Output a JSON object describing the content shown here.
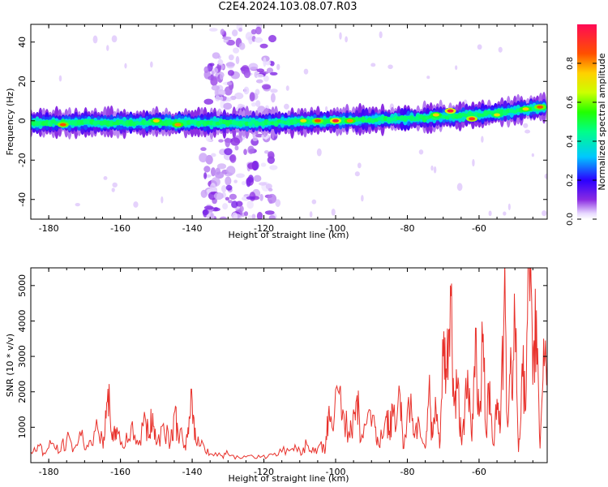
{
  "title": "C2E4.2024.103.08.07.R03",
  "chart_data": [
    {
      "type": "heatmap",
      "title": "C2E4.2024.103.08.07.R03",
      "xlabel": "Height of straight line (km)",
      "ylabel": "Frequency (Hz)",
      "xlim": [
        -185,
        -41
      ],
      "ylim": [
        -50,
        49
      ],
      "xticks": [
        -180,
        -160,
        -140,
        -120,
        -100,
        -80,
        -60
      ],
      "yticks": [
        -40,
        -20,
        0,
        20,
        40
      ],
      "colorbar": {
        "label": "Normalized spectral amplitude",
        "range": [
          0,
          1
        ],
        "ticks": [
          0.0,
          0.2,
          0.4,
          0.6,
          0.8
        ],
        "colormap": "gist_rainbow_r"
      },
      "band_center_hz": [
        {
          "x": -185,
          "y": -1
        },
        {
          "x": -120,
          "y": -1
        },
        {
          "x": -100,
          "y": 0
        },
        {
          "x": -80,
          "y": 1
        },
        {
          "x": -60,
          "y": 3
        },
        {
          "x": -41,
          "y": 7
        }
      ],
      "high_amplitude_points": [
        {
          "x": -176,
          "y": -2,
          "amp": 0.85
        },
        {
          "x": -150,
          "y": 0,
          "amp": 0.75
        },
        {
          "x": -144,
          "y": -2,
          "amp": 0.8
        },
        {
          "x": -109,
          "y": 0,
          "amp": 0.7
        },
        {
          "x": -105,
          "y": 0,
          "amp": 0.85
        },
        {
          "x": -100,
          "y": 0,
          "amp": 0.95
        },
        {
          "x": -96,
          "y": 0,
          "amp": 0.8
        },
        {
          "x": -72,
          "y": 3,
          "amp": 0.75
        },
        {
          "x": -68,
          "y": 5,
          "amp": 0.95
        },
        {
          "x": -62,
          "y": 1,
          "amp": 0.9
        },
        {
          "x": -55,
          "y": 3,
          "amp": 0.7
        },
        {
          "x": -47,
          "y": 6,
          "amp": 0.75
        },
        {
          "x": -43,
          "y": 7,
          "amp": 0.85
        }
      ],
      "broadband_noise_x_range": [
        -137,
        -117
      ]
    },
    {
      "type": "line",
      "xlabel": "Height of straight line (km)",
      "ylabel": "SNR (10 * v/v)",
      "xlim": [
        -185,
        -41
      ],
      "ylim": [
        0,
        5500
      ],
      "xticks": [
        -180,
        -160,
        -140,
        -120,
        -100,
        -80,
        -60
      ],
      "yticks": [
        1000,
        2000,
        3000,
        4000,
        5000
      ],
      "color": "#e8312b",
      "series": [
        {
          "values": [
            [
              -185,
              300
            ],
            [
              -183,
              500
            ],
            [
              -181,
              250
            ],
            [
              -179,
              550
            ],
            [
              -177,
              300
            ],
            [
              -175,
              650
            ],
            [
              -173,
              400
            ],
            [
              -171,
              750
            ],
            [
              -169,
              450
            ],
            [
              -167,
              900
            ],
            [
              -165,
              600
            ],
            [
              -164,
              1250
            ],
            [
              -163,
              1650
            ],
            [
              -162,
              600
            ],
            [
              -161,
              1000
            ],
            [
              -159,
              400
            ],
            [
              -157,
              1050
            ],
            [
              -155,
              500
            ],
            [
              -153,
              1200
            ],
            [
              -152,
              700
            ],
            [
              -151,
              1400
            ],
            [
              -150,
              500
            ],
            [
              -148,
              1100
            ],
            [
              -146,
              600
            ],
            [
              -145,
              1400
            ],
            [
              -144,
              900
            ],
            [
              -142,
              500
            ],
            [
              -141,
              800
            ],
            [
              -140,
              1750
            ],
            [
              -139,
              600
            ],
            [
              -137,
              550
            ],
            [
              -135,
              250
            ],
            [
              -132,
              200
            ],
            [
              -130,
              250
            ],
            [
              -127,
              150
            ],
            [
              -124,
              200
            ],
            [
              -121,
              150
            ],
            [
              -118,
              250
            ],
            [
              -115,
              300
            ],
            [
              -112,
              400
            ],
            [
              -110,
              350
            ],
            [
              -108,
              500
            ],
            [
              -106,
              300
            ],
            [
              -104,
              600
            ],
            [
              -103,
              250
            ],
            [
              -102,
              1400
            ],
            [
              -101,
              1000
            ],
            [
              -99,
              1950
            ],
            [
              -98,
              1500
            ],
            [
              -96,
              700
            ],
            [
              -95,
              1500
            ],
            [
              -94,
              1900
            ],
            [
              -93,
              600
            ],
            [
              -91,
              1400
            ],
            [
              -89,
              1000
            ],
            [
              -88,
              500
            ],
            [
              -86,
              1300
            ],
            [
              -85,
              900
            ],
            [
              -84,
              1300
            ],
            [
              -82,
              1900
            ],
            [
              -81,
              400
            ],
            [
              -79,
              1950
            ],
            [
              -78,
              700
            ],
            [
              -77,
              1300
            ],
            [
              -75,
              400
            ],
            [
              -74,
              2000
            ],
            [
              -73,
              700
            ],
            [
              -72,
              1500
            ],
            [
              -71,
              400
            ],
            [
              -70,
              3000
            ],
            [
              -69,
              2400
            ],
            [
              -68,
              5000
            ],
            [
              -67,
              1600
            ],
            [
              -66,
              2100
            ],
            [
              -65,
              700
            ],
            [
              -64,
              1500
            ],
            [
              -63,
              2000
            ],
            [
              -62,
              600
            ],
            [
              -61,
              3800
            ],
            [
              -60,
              1300
            ],
            [
              -59,
              3400
            ],
            [
              -58,
              800
            ],
            [
              -57,
              2300
            ],
            [
              -56,
              500
            ],
            [
              -55,
              1800
            ],
            [
              -54,
              1100
            ],
            [
              -53,
              4500
            ],
            [
              -52,
              1000
            ],
            [
              -51,
              2700
            ],
            [
              -50,
              4000
            ],
            [
              -49,
              300
            ],
            [
              -48,
              2800
            ],
            [
              -47,
              1500
            ],
            [
              -46,
              5500
            ],
            [
              -45,
              2200
            ],
            [
              -44,
              4300
            ],
            [
              -43,
              400
            ],
            [
              -42,
              3500
            ],
            [
              -41,
              2800
            ]
          ]
        }
      ]
    }
  ]
}
